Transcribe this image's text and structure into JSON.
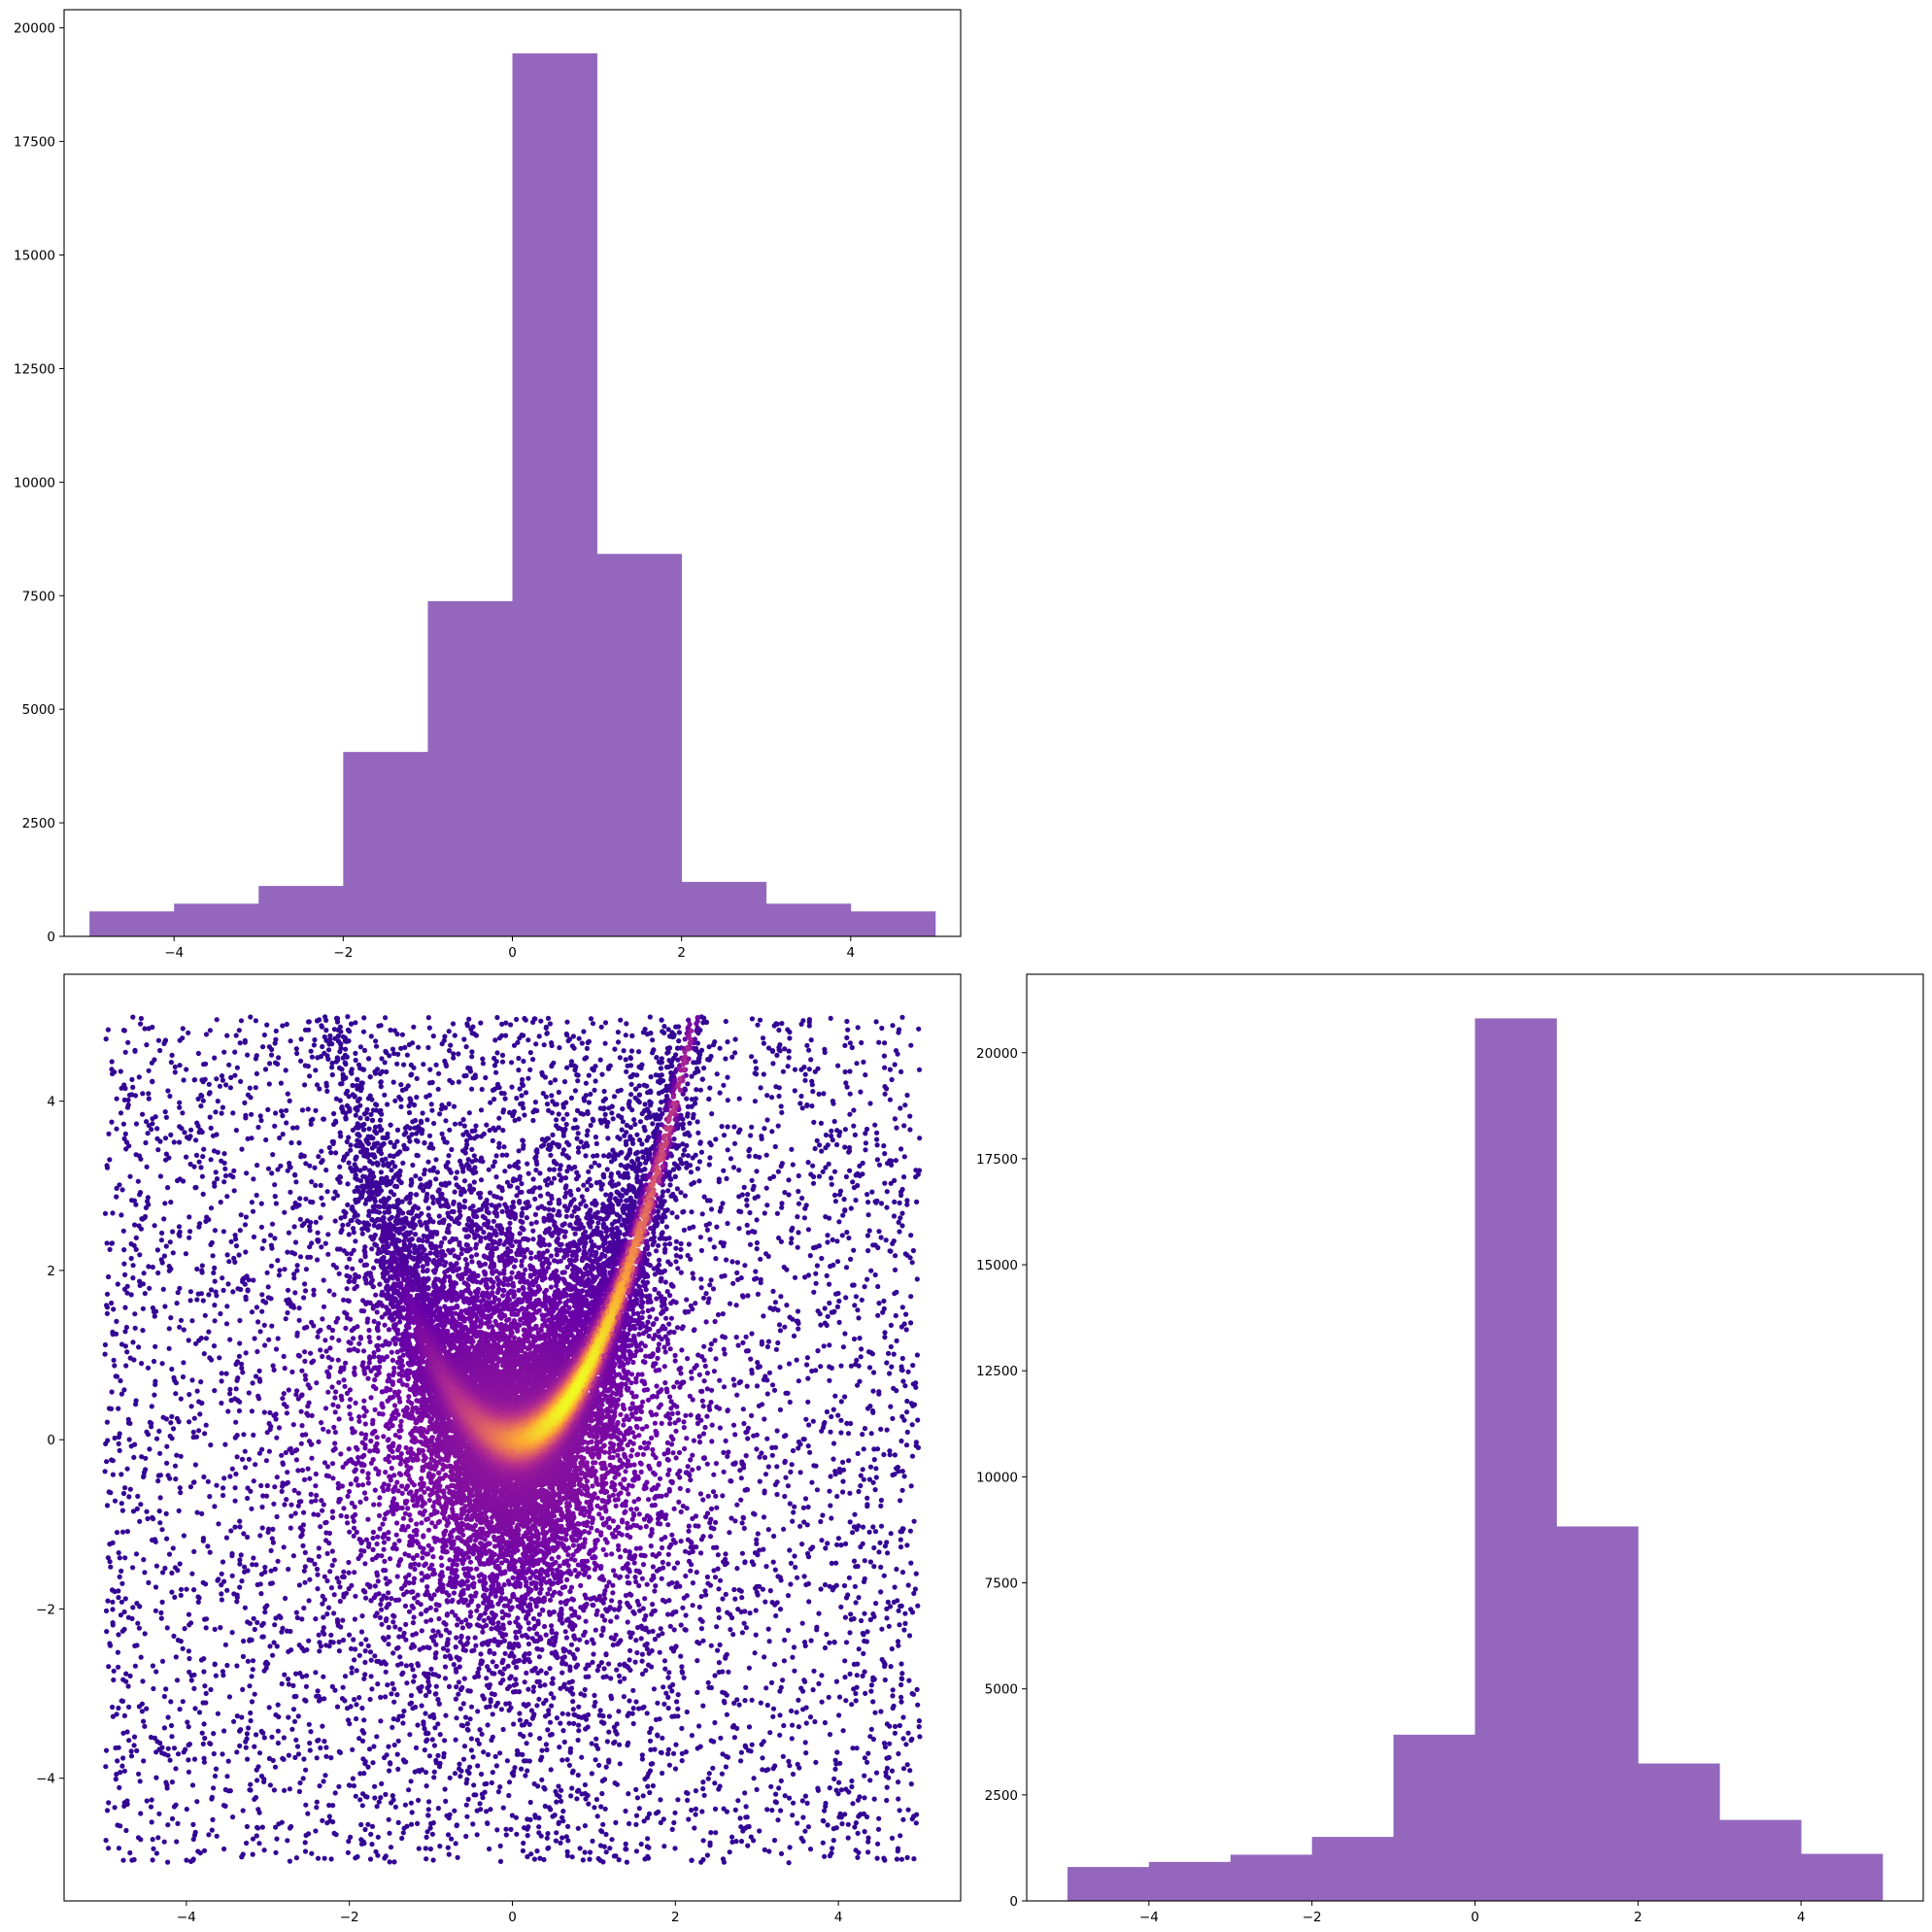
{
  "chart_data": [
    {
      "id": "hist-x",
      "type": "bar",
      "title": "",
      "xlabel": "",
      "ylabel": "",
      "color": "#9467bd",
      "bin_edges": [
        -5,
        -4,
        -3,
        -2,
        -1,
        0,
        1,
        2,
        3,
        4,
        5
      ],
      "values": [
        550,
        720,
        1110,
        4060,
        7380,
        19440,
        8420,
        1200,
        720,
        550
      ],
      "xlim": [
        -5.3,
        5.3
      ],
      "ylim": [
        0,
        20400
      ],
      "xticks": [
        -4,
        -2,
        0,
        2,
        4
      ],
      "yticks": [
        0,
        2500,
        5000,
        7500,
        10000,
        12500,
        15000,
        17500,
        20000
      ],
      "xtick_labels": [
        "−4",
        "−2",
        "0",
        "2",
        "4"
      ],
      "ytick_labels": [
        "0",
        "2500",
        "5000",
        "7500",
        "10000",
        "12500",
        "15000",
        "17500",
        "20000"
      ],
      "grid": false
    },
    {
      "id": "scatter-xy",
      "type": "scatter",
      "title": "",
      "xlabel": "",
      "ylabel": "",
      "colormap": [
        "#0d0887",
        "#6a00a8",
        "#b12a90",
        "#e16462",
        "#fca636",
        "#f0f921"
      ],
      "sample_description": "uniform background on [-5,5]^2 plus a dense band along y = x^2",
      "xlim": [
        -5.5,
        5.5
      ],
      "ylim": [
        -5.45,
        5.5
      ],
      "xticks": [
        -4,
        -2,
        0,
        2,
        4
      ],
      "yticks": [
        -4,
        -2,
        0,
        2,
        4
      ],
      "xtick_labels": [
        "−4",
        "−2",
        "0",
        "2",
        "4"
      ],
      "ytick_labels": [
        "−4",
        "−2",
        "0",
        "2",
        "4"
      ],
      "grid": false
    },
    {
      "id": "hist-y",
      "type": "bar",
      "title": "",
      "xlabel": "",
      "ylabel": "",
      "color": "#9467bd",
      "bin_edges": [
        -5,
        -4,
        -3,
        -2,
        -1,
        0,
        1,
        2,
        3,
        4,
        5
      ],
      "values": [
        800,
        920,
        1090,
        1510,
        3920,
        20810,
        8830,
        3240,
        1910,
        1110
      ],
      "xlim": [
        -5.5,
        5.5
      ],
      "ylim": [
        0,
        21850
      ],
      "xticks": [
        -4,
        -2,
        0,
        2,
        4
      ],
      "yticks": [
        0,
        2500,
        5000,
        7500,
        10000,
        12500,
        15000,
        17500,
        20000
      ],
      "xtick_labels": [
        "−4",
        "−2",
        "0",
        "2",
        "4"
      ],
      "ytick_labels": [
        "0",
        "2500",
        "5000",
        "7500",
        "10000",
        "12500",
        "15000",
        "17500",
        "20000"
      ],
      "grid": false
    }
  ]
}
